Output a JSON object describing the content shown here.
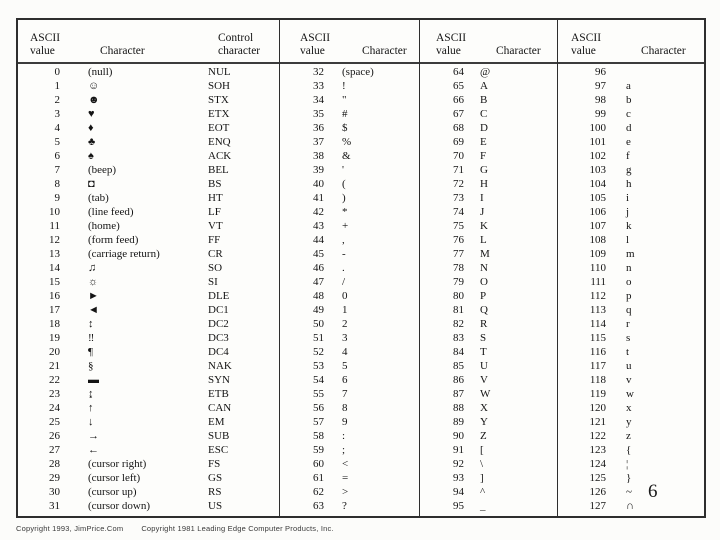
{
  "page": {
    "number": "6",
    "footer_left": "Copyright 1993, JimPrice.Com",
    "footer_right": "Copyright 1981 Leading Edge Computer Products, Inc."
  },
  "table": {
    "groups": [
      {
        "headers": [
          "ASCII value",
          "Character",
          "Control character"
        ],
        "rows": [
          [
            "0",
            "(null)",
            "NUL"
          ],
          [
            "1",
            "☺",
            "SOH"
          ],
          [
            "2",
            "☻",
            "STX"
          ],
          [
            "3",
            "♥",
            "ETX"
          ],
          [
            "4",
            "♦",
            "EOT"
          ],
          [
            "5",
            "♣",
            "ENQ"
          ],
          [
            "6",
            "♠",
            "ACK"
          ],
          [
            "7",
            "(beep)",
            "BEL"
          ],
          [
            "8",
            "◘",
            "BS"
          ],
          [
            "9",
            "(tab)",
            "HT"
          ],
          [
            "10",
            "(line feed)",
            "LF"
          ],
          [
            "11",
            "(home)",
            "VT"
          ],
          [
            "12",
            "(form feed)",
            "FF"
          ],
          [
            "13",
            "(carriage return)",
            "CR"
          ],
          [
            "14",
            "♫",
            "SO"
          ],
          [
            "15",
            "☼",
            "SI"
          ],
          [
            "16",
            "►",
            "DLE"
          ],
          [
            "17",
            "◄",
            "DC1"
          ],
          [
            "18",
            "↕",
            "DC2"
          ],
          [
            "19",
            "‼",
            "DC3"
          ],
          [
            "20",
            "¶",
            "DC4"
          ],
          [
            "21",
            "§",
            "NAK"
          ],
          [
            "22",
            "▬",
            "SYN"
          ],
          [
            "23",
            "↨",
            "ETB"
          ],
          [
            "24",
            "↑",
            "CAN"
          ],
          [
            "25",
            "↓",
            "EM"
          ],
          [
            "26",
            "→",
            "SUB"
          ],
          [
            "27",
            "←",
            "ESC"
          ],
          [
            "28",
            "(cursor right)",
            "FS"
          ],
          [
            "29",
            "(cursor left)",
            "GS"
          ],
          [
            "30",
            "(cursor up)",
            "RS"
          ],
          [
            "31",
            "(cursor down)",
            "US"
          ]
        ]
      },
      {
        "headers": [
          "ASCII value",
          "Character"
        ],
        "rows": [
          [
            "32",
            "(space)"
          ],
          [
            "33",
            "!"
          ],
          [
            "34",
            "\""
          ],
          [
            "35",
            "#"
          ],
          [
            "36",
            "$"
          ],
          [
            "37",
            "%"
          ],
          [
            "38",
            "&"
          ],
          [
            "39",
            "'"
          ],
          [
            "40",
            "("
          ],
          [
            "41",
            ")"
          ],
          [
            "42",
            "*"
          ],
          [
            "43",
            "+"
          ],
          [
            "44",
            ","
          ],
          [
            "45",
            "-"
          ],
          [
            "46",
            "."
          ],
          [
            "47",
            "/"
          ],
          [
            "48",
            "0"
          ],
          [
            "49",
            "1"
          ],
          [
            "50",
            "2"
          ],
          [
            "51",
            "3"
          ],
          [
            "52",
            "4"
          ],
          [
            "53",
            "5"
          ],
          [
            "54",
            "6"
          ],
          [
            "55",
            "7"
          ],
          [
            "56",
            "8"
          ],
          [
            "57",
            "9"
          ],
          [
            "58",
            ":"
          ],
          [
            "59",
            ";"
          ],
          [
            "60",
            "<"
          ],
          [
            "61",
            "="
          ],
          [
            "62",
            ">"
          ],
          [
            "63",
            "?"
          ]
        ]
      },
      {
        "headers": [
          "ASCII value",
          "Character"
        ],
        "rows": [
          [
            "64",
            "@"
          ],
          [
            "65",
            "A"
          ],
          [
            "66",
            "B"
          ],
          [
            "67",
            "C"
          ],
          [
            "68",
            "D"
          ],
          [
            "69",
            "E"
          ],
          [
            "70",
            "F"
          ],
          [
            "71",
            "G"
          ],
          [
            "72",
            "H"
          ],
          [
            "73",
            "I"
          ],
          [
            "74",
            "J"
          ],
          [
            "75",
            "K"
          ],
          [
            "76",
            "L"
          ],
          [
            "77",
            "M"
          ],
          [
            "78",
            "N"
          ],
          [
            "79",
            "O"
          ],
          [
            "80",
            "P"
          ],
          [
            "81",
            "Q"
          ],
          [
            "82",
            "R"
          ],
          [
            "83",
            "S"
          ],
          [
            "84",
            "T"
          ],
          [
            "85",
            "U"
          ],
          [
            "86",
            "V"
          ],
          [
            "87",
            "W"
          ],
          [
            "88",
            "X"
          ],
          [
            "89",
            "Y"
          ],
          [
            "90",
            "Z"
          ],
          [
            "91",
            "["
          ],
          [
            "92",
            "\\"
          ],
          [
            "93",
            "]"
          ],
          [
            "94",
            "^"
          ],
          [
            "95",
            "_"
          ]
        ]
      },
      {
        "headers": [
          "ASCII value",
          "Character"
        ],
        "rows": [
          [
            "96",
            ""
          ],
          [
            "97",
            "a"
          ],
          [
            "98",
            "b"
          ],
          [
            "99",
            "c"
          ],
          [
            "100",
            "d"
          ],
          [
            "101",
            "e"
          ],
          [
            "102",
            "f"
          ],
          [
            "103",
            "g"
          ],
          [
            "104",
            "h"
          ],
          [
            "105",
            "i"
          ],
          [
            "106",
            "j"
          ],
          [
            "107",
            "k"
          ],
          [
            "108",
            "l"
          ],
          [
            "109",
            "m"
          ],
          [
            "110",
            "n"
          ],
          [
            "111",
            "o"
          ],
          [
            "112",
            "p"
          ],
          [
            "113",
            "q"
          ],
          [
            "114",
            "r"
          ],
          [
            "115",
            "s"
          ],
          [
            "116",
            "t"
          ],
          [
            "117",
            "u"
          ],
          [
            "118",
            "v"
          ],
          [
            "119",
            "w"
          ],
          [
            "120",
            "x"
          ],
          [
            "121",
            "y"
          ],
          [
            "122",
            "z"
          ],
          [
            "123",
            "{"
          ],
          [
            "124",
            "¦"
          ],
          [
            "125",
            "}"
          ],
          [
            "126",
            "~"
          ],
          [
            "127",
            "∩"
          ]
        ]
      }
    ]
  }
}
